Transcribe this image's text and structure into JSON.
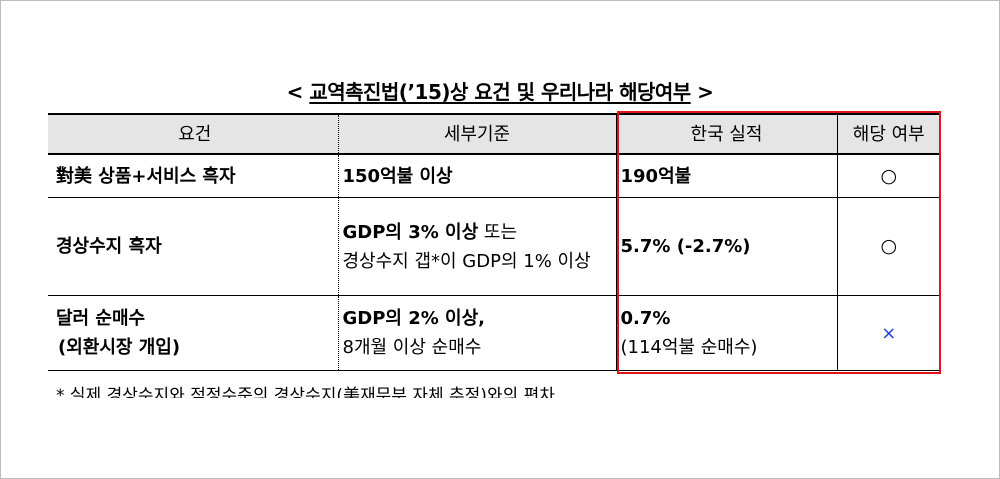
{
  "title": {
    "open": "<",
    "text": "교역촉진법(’15)상 요건 및 우리나라 해당여부",
    "close": ">"
  },
  "table": {
    "headers": [
      "요건",
      "세부기준",
      "한국 실적",
      "해당 여부"
    ],
    "rows": [
      {
        "requirement": "對美 상품+서비스 흑자",
        "criteria_bold": "150억불 이상",
        "criteria_rest_1": "",
        "criteria_rest_2": "",
        "korea_bold": "190억불",
        "korea_rest": "",
        "status": "○"
      },
      {
        "requirement": "경상수지 흑자",
        "criteria_bold": "GDP의 3% 이상",
        "criteria_rest_1": " 또는",
        "criteria_rest_2": "경상수지 갭*이 GDP의 1% 이상",
        "korea_bold": "5.7% (-2.7%)",
        "korea_rest": "",
        "status": "○"
      },
      {
        "requirement_line1": "달러 순매수",
        "requirement_line2": "(외환시장 개입)",
        "criteria_bold": "GDP의 2% 이상,",
        "criteria_rest_2": "8개월 이상 순매수",
        "korea_bold": "0.7%",
        "korea_rest": "(114억불 순매수)",
        "status": "×"
      }
    ]
  },
  "footnote": "* 실제 경상수지와 적정수준의 경상수지(美재무부 자체 추정)와의 편차",
  "colors": {
    "highlight_border": "#e0141b",
    "header_bg": "#e5e5e5",
    "x_mark": "#1e3fd0"
  }
}
